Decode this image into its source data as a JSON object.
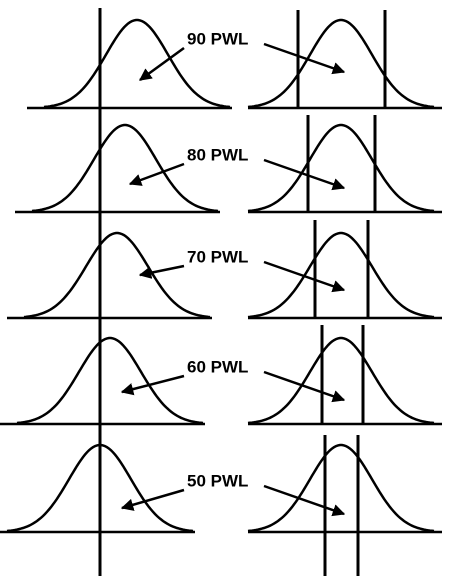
{
  "rows": [
    {
      "label": "90 PWL"
    },
    {
      "label": "80 PWL"
    },
    {
      "label": "70 PWL"
    },
    {
      "label": "60 PWL"
    },
    {
      "label": "50 PWL"
    }
  ]
}
